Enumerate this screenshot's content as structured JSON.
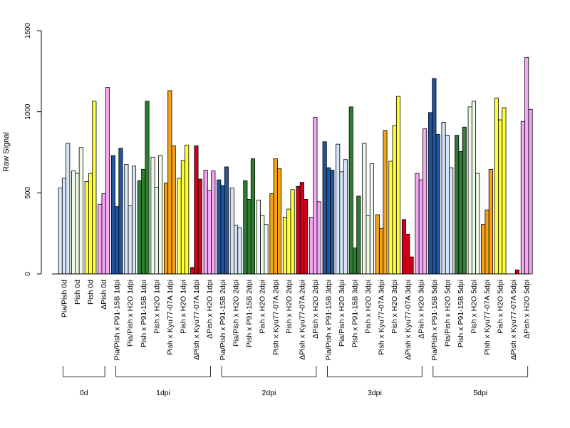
{
  "chart_data": {
    "type": "bar",
    "title": "",
    "xlabel": "",
    "ylabel": "Raw Signal",
    "ylim": [
      0,
      1500
    ],
    "yticks": [
      0,
      500,
      1000,
      1500
    ],
    "grid": false,
    "legend": "none",
    "categories": [
      {
        "label": "Pia/Pish 0d",
        "color": "#d6e4f5",
        "values": [
          530,
          590,
          805
        ]
      },
      {
        "label": "Pish 0d",
        "color": "#eff9e9",
        "values": [
          635,
          620,
          780
        ]
      },
      {
        "label": "Pish 0d",
        "color": "#ffff33",
        "values": [
          570,
          620,
          1065
        ]
      },
      {
        "label": "ΔPish 0d",
        "color": "#f4a8f4",
        "values": [
          430,
          495,
          1150
        ]
      },
      {
        "label": "Pia/Pish x P91-15B 1dpi",
        "color": "#1f56a0",
        "values": [
          730,
          415,
          775
        ]
      },
      {
        "label": "Pia/Pish x H2O 1dpi",
        "color": "#d6e4f5",
        "values": [
          675,
          420,
          665
        ]
      },
      {
        "label": "Pish x P91-15B 1dpi",
        "color": "#2e7d32",
        "values": [
          575,
          645,
          1065
        ]
      },
      {
        "label": "Pish x H2O 1dpi",
        "color": "#eff9e9",
        "values": [
          720,
          535,
          730
        ]
      },
      {
        "label": "Pish x Kyu77-07A 1dpi",
        "color": "#f5a21b",
        "values": [
          560,
          1130,
          790
        ]
      },
      {
        "label": "Pish x H2O 1dpi",
        "color": "#ffff33",
        "values": [
          590,
          700,
          795
        ]
      },
      {
        "label": "ΔPish x Kyu77-07A 1dpi",
        "color": "#d0021b",
        "values": [
          40,
          790,
          585
        ]
      },
      {
        "label": "ΔPish x H2O 1dpi",
        "color": "#f4a8f4",
        "values": [
          640,
          515,
          635
        ]
      },
      {
        "label": "Pia/Pish x P91-15B 2dpi",
        "color": "#1f56a0",
        "values": [
          580,
          545,
          660
        ]
      },
      {
        "label": "Pia/Pish x H2O 2dpi",
        "color": "#d6e4f5",
        "values": [
          530,
          300,
          285
        ]
      },
      {
        "label": "Pish x P91-15B 2dpi",
        "color": "#2e7d32",
        "values": [
          575,
          460,
          710
        ]
      },
      {
        "label": "Pish x H2O 2dpi",
        "color": "#eff9e9",
        "values": [
          455,
          360,
          305
        ]
      },
      {
        "label": "Pish x Kyu77-07A 2dpi",
        "color": "#f5a21b",
        "values": [
          495,
          710,
          650
        ]
      },
      {
        "label": "Pish x H2O 2dpi",
        "color": "#ffff33",
        "values": [
          350,
          400,
          520
        ]
      },
      {
        "label": "ΔPish x Kyu77-07A 2dpi",
        "color": "#d0021b",
        "values": [
          540,
          565,
          460
        ]
      },
      {
        "label": "ΔPish x H2O 2dpi",
        "color": "#f4a8f4",
        "values": [
          350,
          965,
          445
        ]
      },
      {
        "label": "Pia/Pish x P91-15B 3dpi",
        "color": "#1f56a0",
        "values": [
          815,
          655,
          640
        ]
      },
      {
        "label": "Pia/Pish x H2O 3dpi",
        "color": "#d6e4f5",
        "values": [
          800,
          630,
          705
        ]
      },
      {
        "label": "Pish x P91-15B 3dpi",
        "color": "#2e7d32",
        "values": [
          1030,
          160,
          480
        ]
      },
      {
        "label": "Pish x H2O 3dpi",
        "color": "#eff9e9",
        "values": [
          805,
          360,
          680
        ]
      },
      {
        "label": "Pish x Kyu77-07A 3dpi",
        "color": "#f5a21b",
        "values": [
          365,
          280,
          885
        ]
      },
      {
        "label": "Pish x H2O 3dpi",
        "color": "#ffff33",
        "values": [
          695,
          915,
          1095
        ]
      },
      {
        "label": "ΔPish x Kyu77-07A 3dpi",
        "color": "#d0021b",
        "values": [
          335,
          245,
          105
        ]
      },
      {
        "label": "ΔPish x H2O 3dpi",
        "color": "#f4a8f4",
        "values": [
          620,
          580,
          895
        ]
      },
      {
        "label": "Pia/Pish x P91-15B 5dpi",
        "color": "#1f56a0",
        "values": [
          995,
          1205,
          860
        ]
      },
      {
        "label": "Pia/Pish x H2O 5dpi",
        "color": "#d6e4f5",
        "values": [
          935,
          855,
          655
        ]
      },
      {
        "label": "Pish x P91-15B 5dpi",
        "color": "#2e7d32",
        "values": [
          855,
          755,
          905
        ]
      },
      {
        "label": "Pish x H2O 5dpi",
        "color": "#eff9e9",
        "values": [
          1030,
          1065,
          620
        ]
      },
      {
        "label": "Pish x Kyu77-07A 5dpi",
        "color": "#f5a21b",
        "values": [
          305,
          395,
          645
        ]
      },
      {
        "label": "Pish x H2O 5dpi",
        "color": "#ffff33",
        "values": [
          1085,
          950,
          1025
        ]
      },
      {
        "label": "ΔPish x Kyu77-07A 5dpi",
        "color": "#d0021b",
        "values": [
          0,
          0,
          25
        ]
      },
      {
        "label": "ΔPish x H2O 5dpi",
        "color": "#f4a8f4",
        "values": [
          940,
          1335,
          1015
        ]
      }
    ],
    "groups": [
      {
        "label": "0d",
        "start": 0,
        "end": 3
      },
      {
        "label": "1dpi",
        "start": 4,
        "end": 11
      },
      {
        "label": "2dpi",
        "start": 12,
        "end": 19
      },
      {
        "label": "3dpi",
        "start": 20,
        "end": 27
      },
      {
        "label": "5dpi",
        "start": 28,
        "end": 35
      }
    ]
  }
}
